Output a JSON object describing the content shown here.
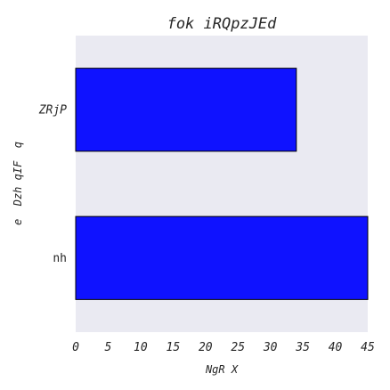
{
  "chart_data": {
    "type": "bar",
    "orientation": "horizontal",
    "title": "fok iRQpzJEd",
    "xlabel": "NgR X",
    "ylabel": "e  Dzh qIF  q",
    "categories": [
      "ZRjP",
      "nh"
    ],
    "values": [
      34,
      45
    ],
    "xlim": [
      0,
      45
    ],
    "xticks": [
      0,
      5,
      10,
      15,
      20,
      25,
      30,
      35,
      40,
      45
    ],
    "grid": false,
    "colors": {
      "bar": "#0f12ff",
      "bar_edge": "#000000",
      "plot_background": "#eaeaf2"
    }
  }
}
